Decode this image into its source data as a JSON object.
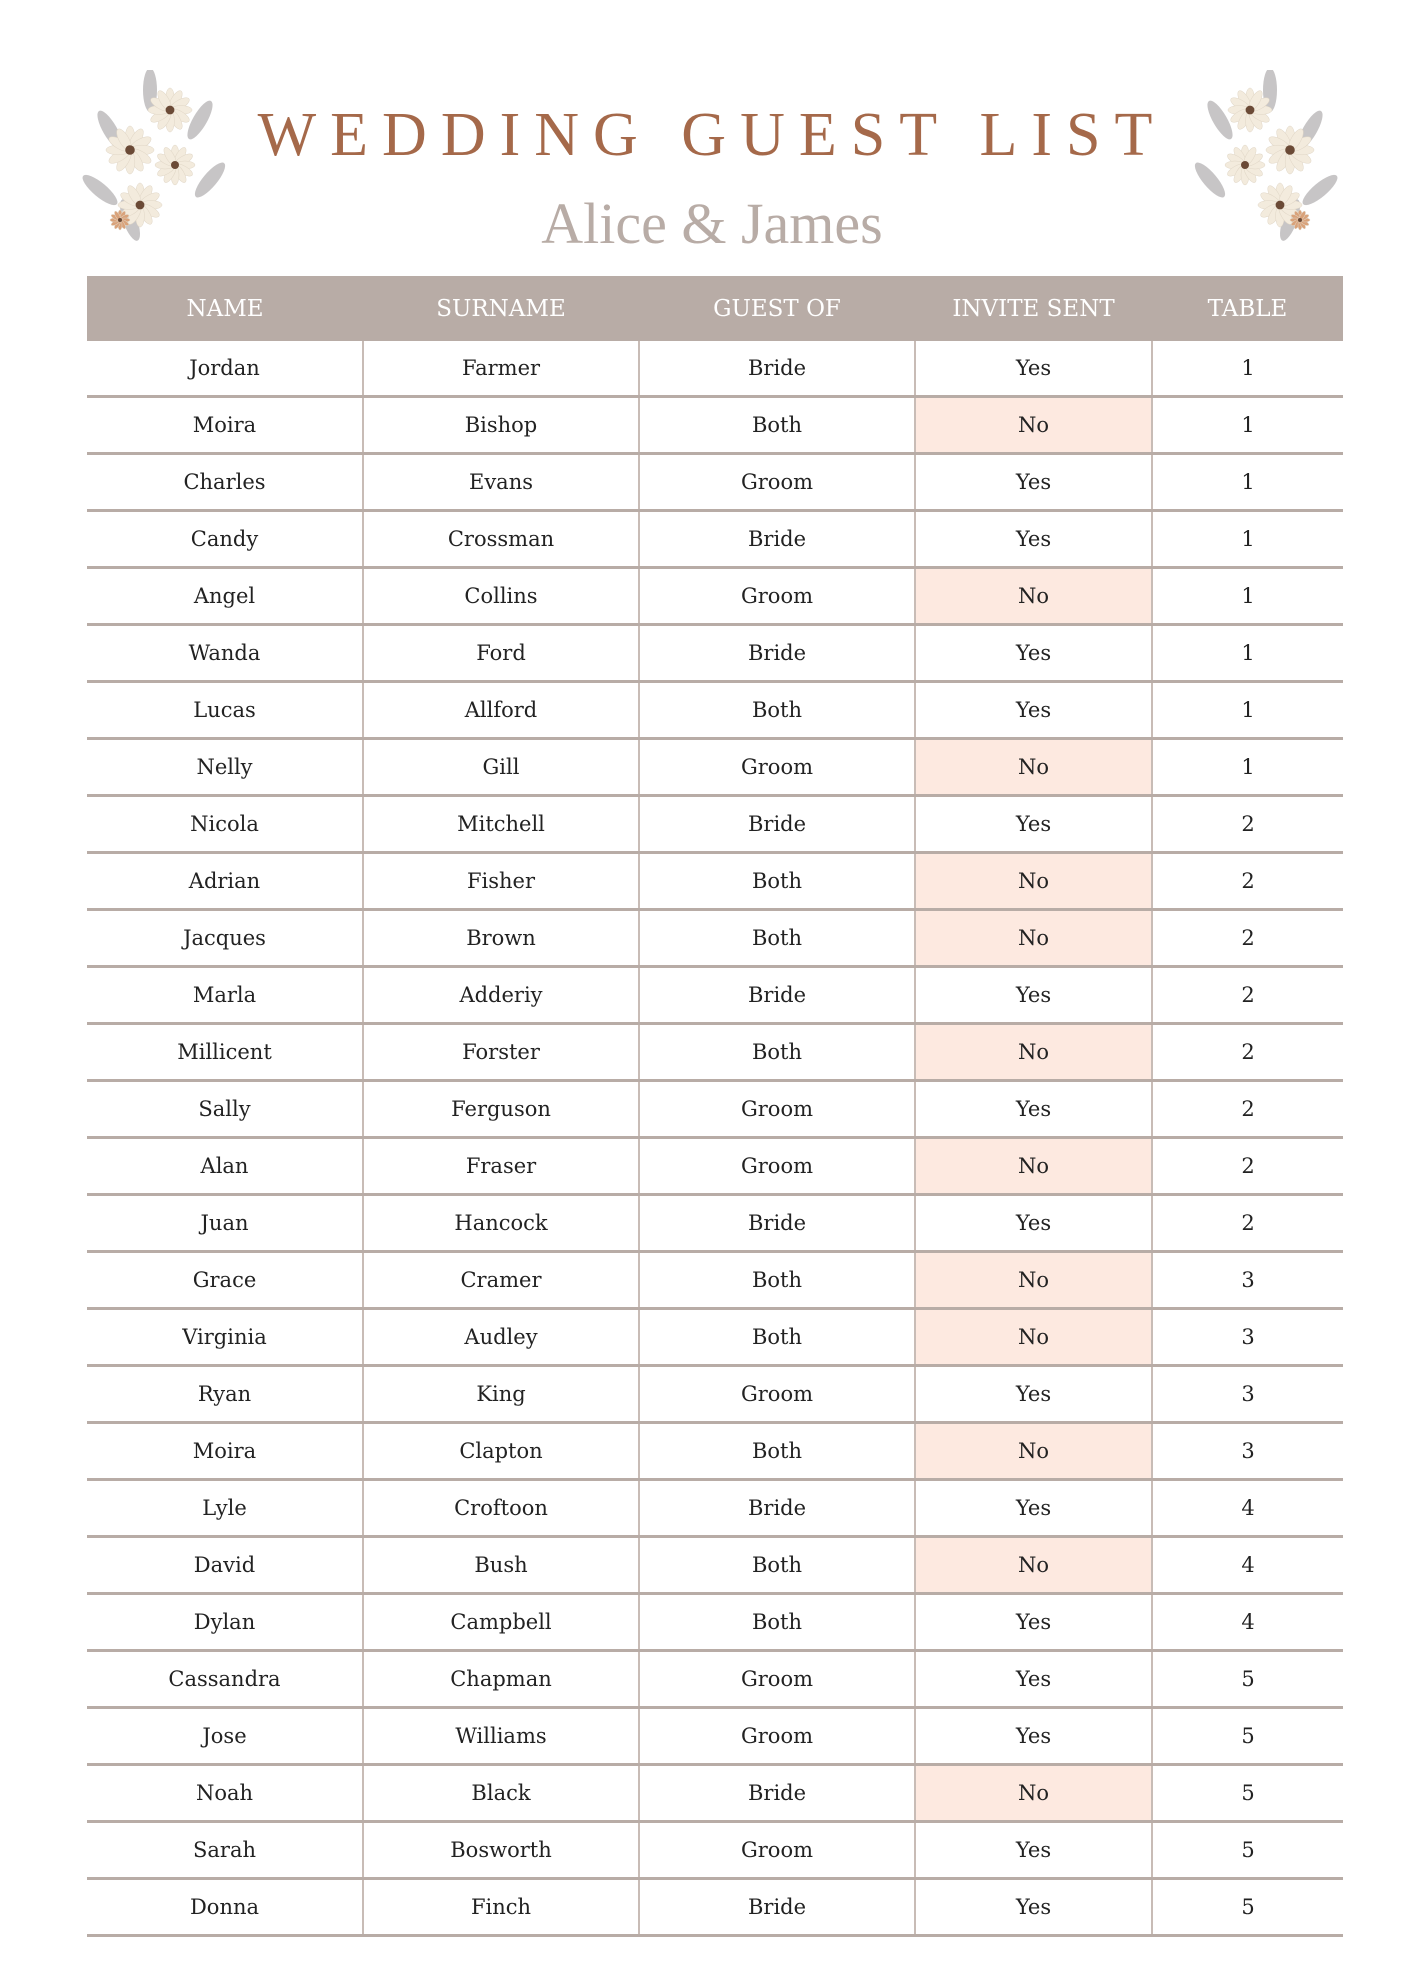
{
  "title": "WEDDING GUEST LIST",
  "subtitle": "Alice & James",
  "colors": {
    "title": "#a5694a",
    "header_bg": "#b8aca6",
    "not_sent_highlight": "#fde9e0"
  },
  "decorations": [
    "floral-bouquet-left",
    "floral-bouquet-right"
  ],
  "table": {
    "headers": [
      "NAME",
      "SURNAME",
      "GUEST OF",
      "INVITE SENT",
      "TABLE"
    ],
    "rows": [
      [
        "Jordan",
        "Farmer",
        "Bride",
        "Yes",
        "1"
      ],
      [
        "Moira",
        "Bishop",
        "Both",
        "No",
        "1"
      ],
      [
        "Charles",
        "Evans",
        "Groom",
        "Yes",
        "1"
      ],
      [
        "Candy",
        "Crossman",
        "Bride",
        "Yes",
        "1"
      ],
      [
        "Angel",
        "Collins",
        "Groom",
        "No",
        "1"
      ],
      [
        "Wanda",
        "Ford",
        "Bride",
        "Yes",
        "1"
      ],
      [
        "Lucas",
        "Allford",
        "Both",
        "Yes",
        "1"
      ],
      [
        "Nelly",
        "Gill",
        "Groom",
        "No",
        "1"
      ],
      [
        "Nicola",
        "Mitchell",
        "Bride",
        "Yes",
        "2"
      ],
      [
        "Adrian",
        "Fisher",
        "Both",
        "No",
        "2"
      ],
      [
        "Jacques",
        "Brown",
        "Both",
        "No",
        "2"
      ],
      [
        "Marla",
        "Adderiy",
        "Bride",
        "Yes",
        "2"
      ],
      [
        "Millicent",
        "Forster",
        "Both",
        "No",
        "2"
      ],
      [
        "Sally",
        "Ferguson",
        "Groom",
        "Yes",
        "2"
      ],
      [
        "Alan",
        "Fraser",
        "Groom",
        "No",
        "2"
      ],
      [
        "Juan",
        "Hancock",
        "Bride",
        "Yes",
        "2"
      ],
      [
        "Grace",
        "Cramer",
        "Both",
        "No",
        "3"
      ],
      [
        "Virginia",
        "Audley",
        "Both",
        "No",
        "3"
      ],
      [
        "Ryan",
        "King",
        "Groom",
        "Yes",
        "3"
      ],
      [
        "Moira",
        "Clapton",
        "Both",
        "No",
        "3"
      ],
      [
        "Lyle",
        "Croftoon",
        "Bride",
        "Yes",
        "4"
      ],
      [
        "David",
        "Bush",
        "Both",
        "No",
        "4"
      ],
      [
        "Dylan",
        "Campbell",
        "Both",
        "Yes",
        "4"
      ],
      [
        "Cassandra",
        "Chapman",
        "Groom",
        "Yes",
        "5"
      ],
      [
        "Jose",
        "Williams",
        "Groom",
        "Yes",
        "5"
      ],
      [
        "Noah",
        "Black",
        "Bride",
        "No",
        "5"
      ],
      [
        "Sarah",
        "Bosworth",
        "Groom",
        "Yes",
        "5"
      ],
      [
        "Donna",
        "Finch",
        "Bride",
        "Yes",
        "5"
      ]
    ]
  }
}
